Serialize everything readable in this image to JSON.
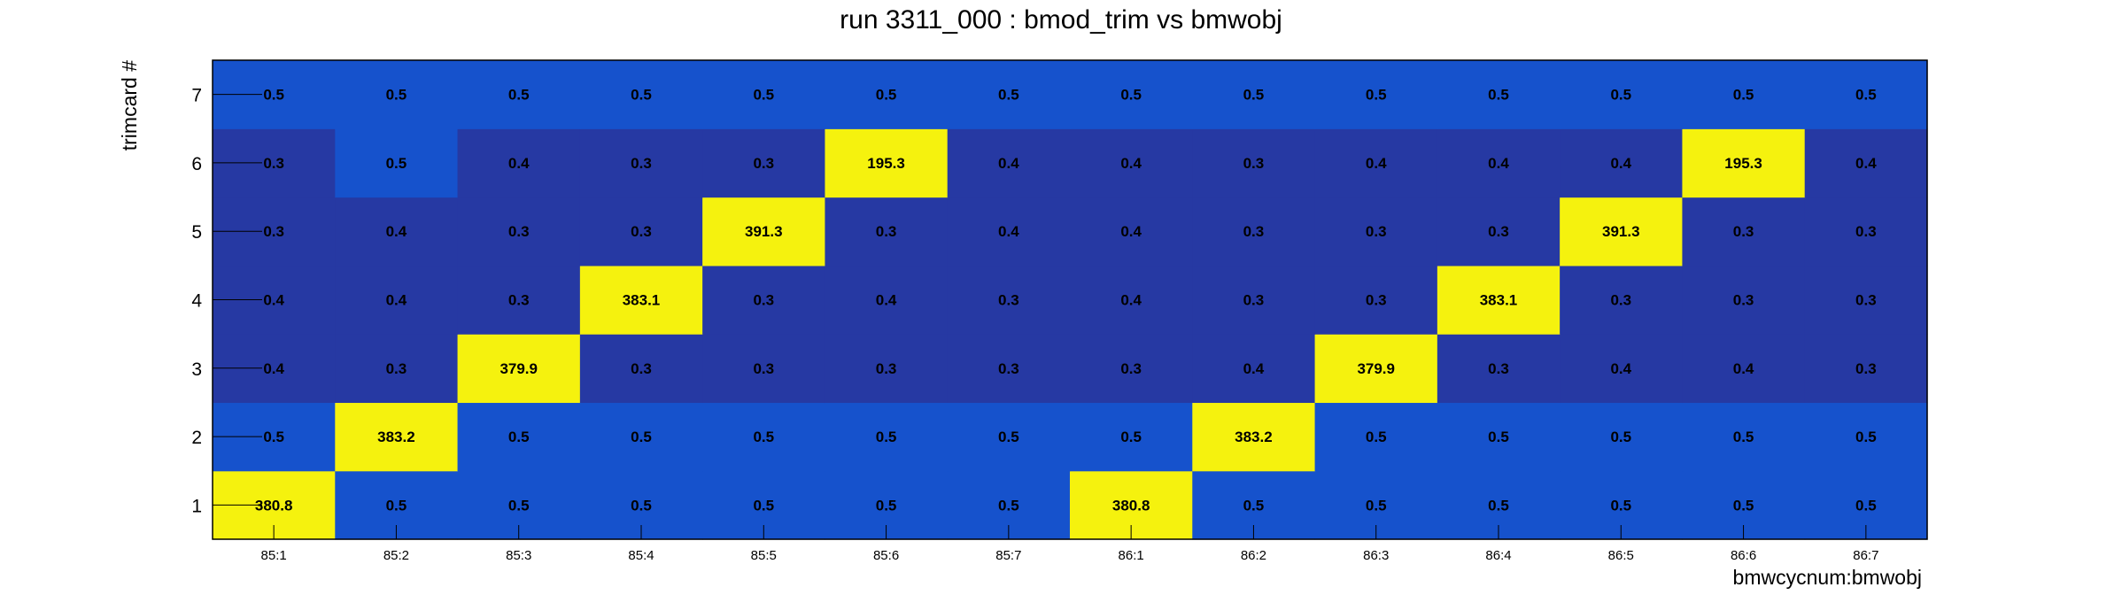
{
  "chart_data": {
    "type": "heatmap",
    "title": "run 3311_000 : bmod_trim vs bmwobj",
    "xlabel": "bmwcycnum:bmwobj",
    "ylabel": "trimcard #",
    "x_categories": [
      "85:1",
      "85:2",
      "85:3",
      "85:4",
      "85:5",
      "85:6",
      "85:7",
      "86:1",
      "86:2",
      "86:3",
      "86:4",
      "86:5",
      "86:6",
      "86:7"
    ],
    "y_categories": [
      "1",
      "2",
      "3",
      "4",
      "5",
      "6",
      "7"
    ],
    "values": [
      [
        380.8,
        0.5,
        0.5,
        0.5,
        0.5,
        0.5,
        0.5,
        380.8,
        0.5,
        0.5,
        0.5,
        0.5,
        0.5,
        0.5
      ],
      [
        0.5,
        383.2,
        0.5,
        0.5,
        0.5,
        0.5,
        0.5,
        0.5,
        383.2,
        0.5,
        0.5,
        0.5,
        0.5,
        0.5
      ],
      [
        0.4,
        0.3,
        379.9,
        0.3,
        0.3,
        0.3,
        0.3,
        0.3,
        0.4,
        379.9,
        0.3,
        0.4,
        0.4,
        0.3
      ],
      [
        0.4,
        0.4,
        0.3,
        383.1,
        0.3,
        0.4,
        0.3,
        0.4,
        0.3,
        0.3,
        383.1,
        0.3,
        0.3,
        0.3
      ],
      [
        0.3,
        0.4,
        0.3,
        0.3,
        391.3,
        0.3,
        0.4,
        0.4,
        0.3,
        0.3,
        0.3,
        391.3,
        0.3,
        0.3
      ],
      [
        0.3,
        0.5,
        0.4,
        0.3,
        0.3,
        195.3,
        0.4,
        0.4,
        0.3,
        0.4,
        0.4,
        0.4,
        195.3,
        0.4
      ],
      [
        0.5,
        0.5,
        0.5,
        0.5,
        0.5,
        0.5,
        0.5,
        0.5,
        0.5,
        0.5,
        0.5,
        0.5,
        0.5,
        0.5
      ]
    ],
    "colors": {
      "low": "#2639a3",
      "mid": "#1652cc",
      "high": "#f5f20e",
      "frame": "#000000"
    }
  }
}
